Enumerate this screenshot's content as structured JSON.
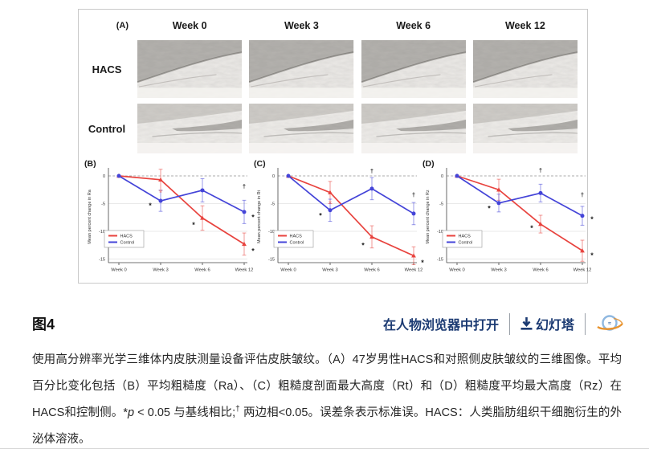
{
  "panel_a": {
    "label": "(A)",
    "week_headers": [
      "Week 0",
      "Week 3",
      "Week 6",
      "Week 12"
    ],
    "row_labels": [
      "HACS",
      "Control"
    ]
  },
  "chart_data": [
    {
      "type": "line",
      "panel": "(B)",
      "ylabel": "Mean percent change in Ra",
      "categories": [
        "Week 0",
        "Week 3",
        "Week 6",
        "Week 12"
      ],
      "ylim": [
        -16,
        2
      ],
      "yticks": [
        0,
        -5,
        -10,
        -15
      ],
      "legend_position": "lower-left",
      "grid": true,
      "series": [
        {
          "name": "HACS",
          "color": "#e8433e",
          "values": [
            0,
            -0.7,
            -7.6,
            -12.3
          ],
          "errors": [
            0.3,
            1.9,
            2.2,
            2.0
          ]
        },
        {
          "name": "Control",
          "color": "#4444d8",
          "values": [
            0,
            -4.5,
            -2.6,
            -6.5
          ],
          "errors": [
            0.3,
            1.9,
            2.1,
            2.1
          ]
        }
      ],
      "annotations": [
        {
          "xi": 1,
          "y": -2.9,
          "text": "*",
          "color": "#f0928e",
          "dx": 0
        },
        {
          "xi": 1,
          "y": -5.2,
          "text": "*",
          "color": "#222",
          "dx": -13
        },
        {
          "xi": 2,
          "y": -8.7,
          "text": "*",
          "color": "#222",
          "dx": -11
        },
        {
          "xi": 3,
          "y": -1.9,
          "text": "†",
          "color": "#222",
          "dx": 0
        },
        {
          "xi": 3,
          "y": -7.3,
          "text": "*",
          "color": "#222",
          "dx": 11
        },
        {
          "xi": 3,
          "y": -13.4,
          "text": "*",
          "color": "#222",
          "dx": 11
        }
      ]
    },
    {
      "type": "line",
      "panel": "(C)",
      "ylabel": "Mean percent change in Rt",
      "categories": [
        "Week 0",
        "Week 3",
        "Week 6",
        "Week 12"
      ],
      "ylim": [
        -16,
        2
      ],
      "yticks": [
        0,
        -5,
        -10,
        -15
      ],
      "legend_position": "lower-left",
      "grid": true,
      "series": [
        {
          "name": "HACS",
          "color": "#e8433e",
          "values": [
            0,
            -3.0,
            -11.0,
            -14.4
          ],
          "errors": [
            0.3,
            2.0,
            2.0,
            1.6
          ]
        },
        {
          "name": "Control",
          "color": "#4444d8",
          "values": [
            0,
            -6.2,
            -2.3,
            -6.8
          ],
          "errors": [
            0.3,
            2.0,
            2.0,
            2.0
          ]
        }
      ],
      "annotations": [
        {
          "xi": 1,
          "y": -4.8,
          "text": "*",
          "color": "#f0928e",
          "dx": 0
        },
        {
          "xi": 1,
          "y": -7.0,
          "text": "*",
          "color": "#222",
          "dx": -12
        },
        {
          "xi": 2,
          "y": 0.9,
          "text": "†",
          "color": "#222",
          "dx": 0
        },
        {
          "xi": 2,
          "y": -12.4,
          "text": "*",
          "color": "#222",
          "dx": -11
        },
        {
          "xi": 3,
          "y": -3.4,
          "text": "†",
          "color": "#222",
          "dx": 0
        },
        {
          "xi": 3,
          "y": -15.5,
          "text": "*",
          "color": "#222",
          "dx": 11
        }
      ]
    },
    {
      "type": "line",
      "panel": "(D)",
      "ylabel": "Mean percent change in Rz",
      "categories": [
        "Week 0",
        "Week 3",
        "Week 6",
        "Week 12"
      ],
      "ylim": [
        -16,
        2
      ],
      "yticks": [
        0,
        -5,
        -10,
        -15
      ],
      "legend_position": "lower-left",
      "grid": true,
      "series": [
        {
          "name": "HACS",
          "color": "#e8433e",
          "values": [
            0,
            -2.5,
            -8.7,
            -13.5
          ],
          "errors": [
            0.3,
            1.9,
            1.6,
            1.9
          ]
        },
        {
          "name": "Control",
          "color": "#4444d8",
          "values": [
            0,
            -4.9,
            -3.1,
            -7.2
          ],
          "errors": [
            0.3,
            1.6,
            1.6,
            1.7
          ]
        }
      ],
      "annotations": [
        {
          "xi": 1,
          "y": -5.7,
          "text": "*",
          "color": "#222",
          "dx": -12
        },
        {
          "xi": 2,
          "y": 1.0,
          "text": "†",
          "color": "#222",
          "dx": 0
        },
        {
          "xi": 2,
          "y": -9.3,
          "text": "*",
          "color": "#222",
          "dx": -11
        },
        {
          "xi": 3,
          "y": -3.4,
          "text": "†",
          "color": "#222",
          "dx": 0
        },
        {
          "xi": 3,
          "y": -7.7,
          "text": "*",
          "color": "#222",
          "dx": 12
        },
        {
          "xi": 3,
          "y": -14.2,
          "text": "*",
          "color": "#222",
          "dx": 12
        }
      ]
    }
  ],
  "figure_bar": {
    "figure_label": "图4",
    "open_in_viewer": "在人物浏览器中打开",
    "slides": "幻灯塔"
  },
  "caption": {
    "segments": [
      {
        "text": "使用高分辨率光学三维体内皮肤测量设备评估皮肤皱纹。（A）47岁男性HACS和对照侧皮肤皱纹的三维图像。平均百分比变化包括（B）平均粗糙度（Ra）、（C）粗糙度剖面最大高度（Rt）和（D）粗糙度平均最大高度（Rz）在HACS和控制侧。*"
      },
      {
        "text": "p",
        "style": "italic"
      },
      {
        "text": " < 0.05 与基线相比;"
      },
      {
        "text": "†",
        "style": "sup"
      },
      {
        "text": " 两边相<0.05。误差条表示标准误。HACS：人类脂肪组织干细胞衍生的外泌体溶液。"
      }
    ]
  },
  "colors": {
    "hacs": "#e8433e",
    "control": "#4444d8",
    "link": "#1b3a72",
    "panel_border": "#c9c9c9"
  }
}
